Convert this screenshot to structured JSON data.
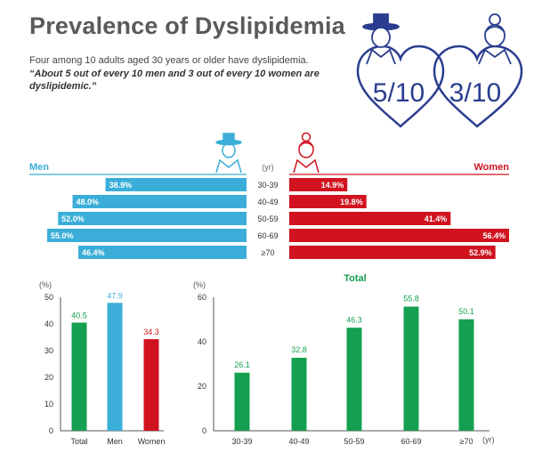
{
  "title": "Prevalence of Dyslipidemia",
  "subtitle": "Four among 10 adults aged 30 years or older have dyslipidemia.",
  "quote": "“About 5 out of every 10 men and 3 out of every 10 women are dyslipidemic.”",
  "ratios": {
    "men": "5/10",
    "women": "3/10"
  },
  "colors": {
    "men": "#3aaed8",
    "women": "#d0131f",
    "total": "#14a050",
    "navy": "#2a3d8f",
    "axis": "#555555",
    "grid": "#cccccc"
  },
  "icons": {
    "men": "man-with-gat-icon",
    "women": "woman-with-bun-icon",
    "heart": "heart-outline-icon"
  },
  "chart_data": [
    {
      "type": "bar",
      "orientation": "horizontal-butterfly",
      "left_label": "Men",
      "right_label": "Women",
      "center_unit": "(yr)",
      "categories": [
        "30-39",
        "40-49",
        "50-59",
        "60-69",
        "≥70"
      ],
      "series": [
        {
          "name": "Men",
          "values": [
            38.9,
            48.0,
            52.0,
            55.0,
            46.4
          ],
          "labels": [
            "38.9%",
            "48.0%",
            "52.0%",
            "55.0%",
            "46.4%"
          ]
        },
        {
          "name": "Women",
          "values": [
            14.9,
            19.8,
            41.4,
            56.4,
            52.9
          ],
          "labels": [
            "14.9%",
            "19.8%",
            "41.4%",
            "56.4%",
            "52.9%"
          ]
        }
      ]
    },
    {
      "type": "bar",
      "ylabel": "(%)",
      "ylim": [
        0,
        50
      ],
      "yticks": [
        "0",
        "10",
        "20",
        "30",
        "40",
        "50"
      ],
      "categories": [
        "Total",
        "Men",
        "Women"
      ],
      "values": [
        40.5,
        47.9,
        34.3
      ],
      "value_labels": [
        "40.5",
        "47.9",
        "34.3"
      ]
    },
    {
      "type": "bar",
      "title": "Total",
      "ylabel": "(%)",
      "xunit": "(yr)",
      "ylim": [
        0,
        60
      ],
      "yticks": [
        "0",
        "20",
        "40",
        "60"
      ],
      "categories": [
        "30-39",
        "40-49",
        "50-59",
        "60-69",
        "≥70"
      ],
      "values": [
        26.1,
        32.8,
        46.3,
        55.8,
        50.1
      ],
      "value_labels": [
        "26.1",
        "32.8",
        "46.3",
        "55.8",
        "50.1"
      ]
    }
  ]
}
